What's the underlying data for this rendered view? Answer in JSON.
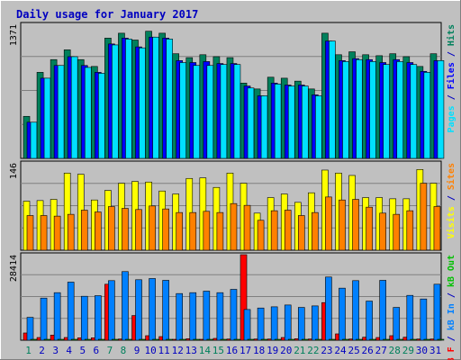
{
  "chart_data": {
    "type": "bar",
    "title": "Daily usage for January 2017",
    "colors": {
      "background": "#c0c0c0",
      "plot_bg": "#c0c0c0",
      "gridline": "#808080",
      "title": "#0000c0",
      "hits": "#00805c",
      "files": "#0000ff",
      "pages": "#00e0ff",
      "visits": "#ffff00",
      "sites": "#ff8000",
      "kb_in": "#0080ff",
      "kb_out": "#00c000",
      "kb_f": "#ff0000",
      "weekend_day": "#00805c",
      "weekday_day": "#0000c0"
    },
    "days": [
      "1",
      "2",
      "3",
      "4",
      "5",
      "6",
      "7",
      "8",
      "9",
      "10",
      "11",
      "12",
      "13",
      "14",
      "15",
      "16",
      "17",
      "18",
      "19",
      "20",
      "21",
      "22",
      "23",
      "24",
      "25",
      "26",
      "27",
      "28",
      "29",
      "30",
      "31"
    ],
    "weekend_days": [
      "1",
      "7",
      "8",
      "14",
      "15",
      "21",
      "22",
      "28",
      "29"
    ],
    "panels": [
      {
        "id": "hits-panel",
        "max_label": "1371",
        "ymax": 1371,
        "legend": [
          {
            "text": "Pages",
            "color": "#00e0ff"
          },
          {
            "text": " / ",
            "color": "#0000c0"
          },
          {
            "text": "Files",
            "color": "#0000ff"
          },
          {
            "text": " / ",
            "color": "#0000c0"
          },
          {
            "text": "Hits",
            "color": "#00805c"
          }
        ],
        "series": [
          {
            "name": "Hits",
            "color": "#00805c",
            "values": [
              430,
              880,
              1010,
              1110,
              1010,
              940,
              1230,
              1280,
              1210,
              1300,
              1280,
              1070,
              1030,
              1060,
              1040,
              1030,
              770,
              710,
              830,
              820,
              790,
              710,
              1280,
              1060,
              1090,
              1060,
              1050,
              1070,
              1040,
              940,
              1070
            ]
          },
          {
            "name": "Files",
            "color": "#0000ff",
            "values": [
              370,
              820,
              950,
              1040,
              950,
              880,
              1170,
              1230,
              1140,
              1240,
              1230,
              1000,
              980,
              990,
              970,
              970,
              740,
              640,
              770,
              750,
              750,
              650,
              1200,
              1000,
              1020,
              1010,
              980,
              1010,
              980,
              890,
              1000
            ]
          },
          {
            "name": "Pages",
            "color": "#00e0ff",
            "values": [
              370,
              820,
              950,
              1040,
              930,
              870,
              1160,
              1220,
              1130,
              1240,
              1220,
              980,
              950,
              950,
              960,
              960,
              720,
              640,
              760,
              740,
              740,
              640,
              1200,
              990,
              1010,
              990,
              960,
              990,
              960,
              880,
              1000
            ]
          }
        ]
      },
      {
        "id": "visits-panel",
        "max_label": "146",
        "ymax": 146,
        "legend": [
          {
            "text": "Visits",
            "color": "#ffff00"
          },
          {
            "text": " / ",
            "color": "#0000c0"
          },
          {
            "text": "Sites",
            "color": "#ff8000"
          }
        ],
        "series": [
          {
            "name": "Visits",
            "color": "#ffff00",
            "values": [
              82,
              83,
              85,
              129,
              127,
              84,
              100,
              112,
              115,
              114,
              99,
              94,
              120,
              121,
              105,
              129,
              112,
              62,
              88,
              94,
              80,
              96,
              134,
              129,
              125,
              88,
              88,
              86,
              86,
              135,
              112
            ]
          },
          {
            "name": "Sites",
            "color": "#ff8000",
            "values": [
              58,
              58,
              57,
              60,
              67,
              64,
              73,
              70,
              68,
              74,
              69,
              63,
              63,
              65,
              63,
              78,
              75,
              50,
              66,
              67,
              58,
              63,
              89,
              84,
              85,
              72,
              62,
              60,
              66,
              112,
              73
            ]
          }
        ]
      },
      {
        "id": "kbytes-panel",
        "max_label": "28414",
        "ymax": 28414,
        "legend": [
          {
            "text": "kB F",
            "color": "#ff0000"
          },
          {
            "text": " / ",
            "color": "#0000c0"
          },
          {
            "text": "kB In",
            "color": "#0080ff"
          },
          {
            "text": " / ",
            "color": "#0000c0"
          },
          {
            "text": "kB Out",
            "color": "#00c000"
          }
        ],
        "series": [
          {
            "name": "kB F",
            "color": "#ff0000",
            "values": [
              2400,
              900,
              1700,
              900,
              800,
              800,
              18600,
              400,
              8200,
              1500,
              1200,
              300,
              500,
              300,
              600,
              400,
              28414,
              400,
              400,
              900,
              500,
              400,
              12500,
              2100,
              400,
              1000,
              900,
              1500,
              1000,
              400,
              400
            ]
          },
          {
            "name": "kB In",
            "color": "#0080ff",
            "values": [
              7600,
              14000,
              15800,
              19300,
              14600,
              14800,
              19800,
              22800,
              20100,
              20500,
              19900,
              15500,
              15800,
              16300,
              15800,
              16900,
              10200,
              10700,
              11100,
              11700,
              10900,
              11400,
              21000,
              17300,
              19800,
              13000,
              19900,
              10900,
              14900,
              13700,
              18600
            ]
          },
          {
            "name": "kB Out",
            "color": "#00c000",
            "values": [
              200,
              200,
              200,
              200,
              200,
              200,
              300,
              300,
              300,
              300,
              300,
              200,
              200,
              200,
              200,
              200,
              200,
              200,
              200,
              200,
              200,
              200,
              300,
              200,
              200,
              200,
              200,
              200,
              200,
              200,
              200
            ]
          }
        ]
      }
    ]
  }
}
